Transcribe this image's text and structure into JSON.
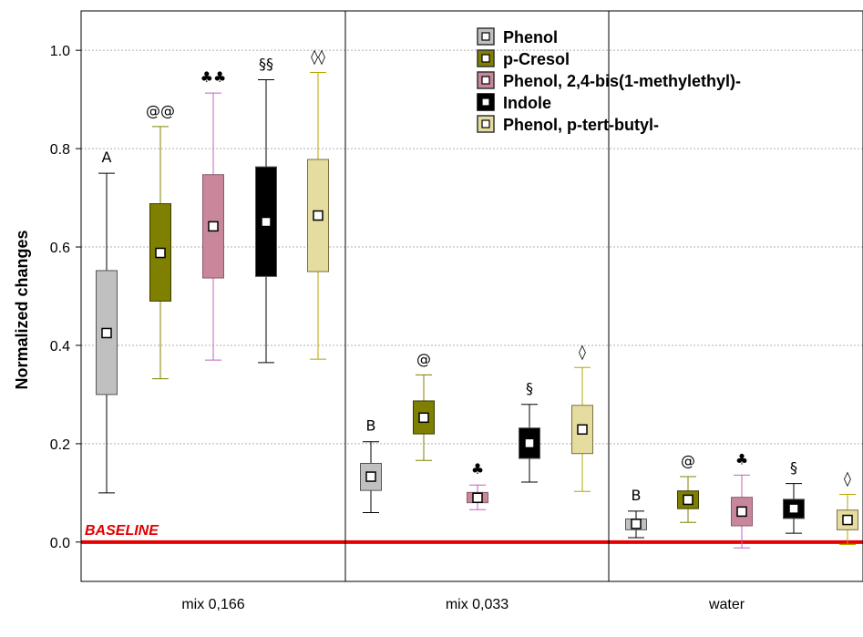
{
  "chart_data": {
    "type": "box",
    "ylabel": "Normalized changes",
    "ylim": [
      -0.08,
      1.08
    ],
    "yticks": [
      "0.0",
      "0.2",
      "0.4",
      "0.6",
      "0.8",
      "1.0"
    ],
    "grid": "horizontal dotted",
    "legend_position": "top-center",
    "baseline": {
      "label": "BASELINE",
      "value": 0.0,
      "color": "#e60000"
    },
    "groups": [
      "mix 0,166",
      "mix 0,033",
      "water"
    ],
    "series": [
      {
        "name": "Phenol",
        "color": "#c0c0c0",
        "stroke": "#000000",
        "boxes": [
          {
            "min": 0.1,
            "q1": 0.3,
            "mean": 0.425,
            "q3": 0.552,
            "max": 0.75,
            "label": "A"
          },
          {
            "min": 0.06,
            "q1": 0.105,
            "mean": 0.133,
            "q3": 0.16,
            "max": 0.204,
            "label": "B"
          },
          {
            "min": 0.009,
            "q1": 0.025,
            "mean": 0.037,
            "q3": 0.047,
            "max": 0.063,
            "label": "B"
          }
        ]
      },
      {
        "name": "p-Cresol",
        "color": "#808000",
        "stroke": "#808000",
        "boxes": [
          {
            "min": 0.332,
            "q1": 0.49,
            "mean": 0.588,
            "q3": 0.688,
            "max": 0.845,
            "label": "@@"
          },
          {
            "min": 0.166,
            "q1": 0.22,
            "mean": 0.253,
            "q3": 0.287,
            "max": 0.34,
            "label": "@"
          },
          {
            "min": 0.04,
            "q1": 0.068,
            "mean": 0.086,
            "q3": 0.104,
            "max": 0.133,
            "label": "@"
          }
        ]
      },
      {
        "name": "Phenol, 2,4-bis(1-methylethyl)-",
        "color": "#c9879b",
        "stroke": "#c060c0",
        "boxes": [
          {
            "min": 0.37,
            "q1": 0.537,
            "mean": 0.642,
            "q3": 0.747,
            "max": 0.913,
            "label": "♣♣"
          },
          {
            "min": 0.066,
            "q1": 0.08,
            "mean": 0.09,
            "q3": 0.101,
            "max": 0.116,
            "label": "♣"
          },
          {
            "min": -0.012,
            "q1": 0.033,
            "mean": 0.062,
            "q3": 0.091,
            "max": 0.136,
            "label": "♣"
          }
        ]
      },
      {
        "name": "Indole",
        "color": "#000000",
        "stroke": "#000000",
        "boxes": [
          {
            "min": 0.365,
            "q1": 0.54,
            "mean": 0.651,
            "q3": 0.763,
            "max": 0.94,
            "label": "§§"
          },
          {
            "min": 0.122,
            "q1": 0.17,
            "mean": 0.201,
            "q3": 0.232,
            "max": 0.28,
            "label": "§"
          },
          {
            "min": 0.018,
            "q1": 0.048,
            "mean": 0.068,
            "q3": 0.087,
            "max": 0.119,
            "label": "§"
          }
        ]
      },
      {
        "name": "Phenol, p-tert-butyl-",
        "color": "#e5dca0",
        "stroke": "#b8a400",
        "boxes": [
          {
            "min": 0.372,
            "q1": 0.55,
            "mean": 0.664,
            "q3": 0.778,
            "max": 0.955,
            "label": "◊◊"
          },
          {
            "min": 0.103,
            "q1": 0.18,
            "mean": 0.229,
            "q3": 0.278,
            "max": 0.355,
            "label": "◊"
          },
          {
            "min": -0.005,
            "q1": 0.025,
            "mean": 0.045,
            "q3": 0.065,
            "max": 0.097,
            "label": "◊"
          }
        ]
      }
    ]
  }
}
